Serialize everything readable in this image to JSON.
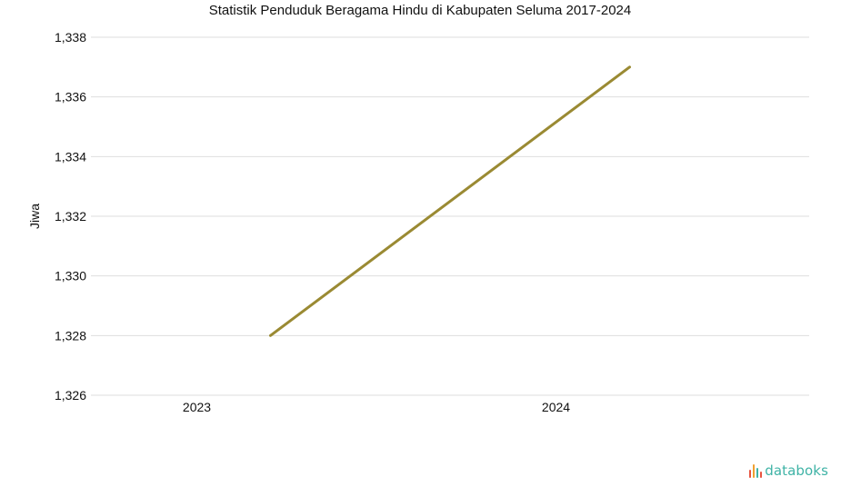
{
  "chart_data": {
    "type": "line",
    "title": "Statistik Penduduk Beragama Hindu di Kabupaten Seluma 2017-2024",
    "xlabel": "",
    "ylabel": "Jiwa",
    "categories": [
      "2023",
      "2024"
    ],
    "series": [
      {
        "values": [
          1328,
          1337
        ],
        "color": "#9a8a33"
      }
    ],
    "ylim": [
      1326,
      1338
    ],
    "yticks": [
      "1,326",
      "1,328",
      "1,330",
      "1,332",
      "1,334",
      "1,336",
      "1,338"
    ],
    "grid": true
  },
  "brand": {
    "text": "databoks",
    "icon": "databoks-logo-icon",
    "text_color": "#3fb3a6",
    "icon_colors": [
      "#e8533f",
      "#f0a030",
      "#3fb3a6",
      "#e8533f"
    ]
  }
}
